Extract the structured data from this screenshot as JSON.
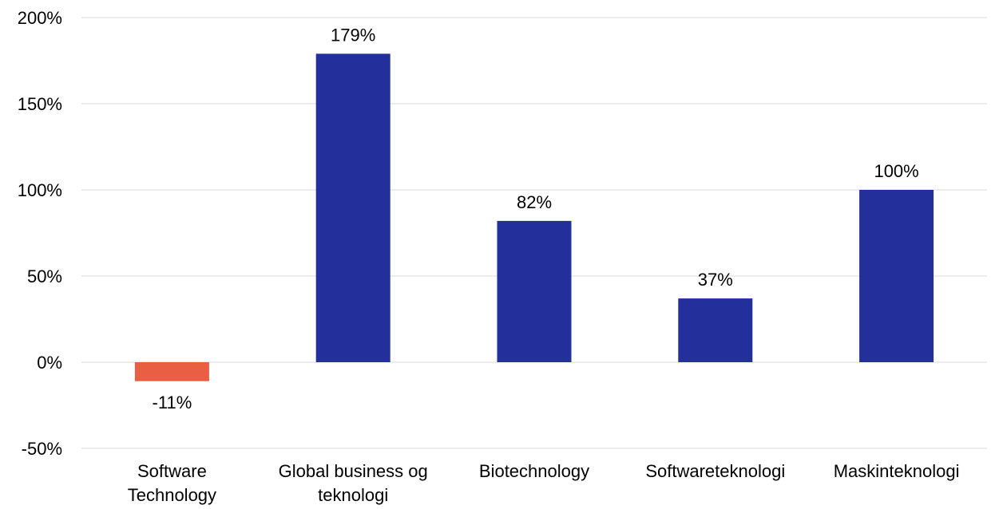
{
  "chart_data": {
    "type": "bar",
    "categories": [
      [
        "Software",
        "Technology"
      ],
      [
        "Global business og",
        "teknologi"
      ],
      [
        "Biotechnology"
      ],
      [
        "Softwareteknologi"
      ],
      [
        "Maskinteknologi"
      ]
    ],
    "values": [
      -11,
      179,
      82,
      37,
      100
    ],
    "data_labels": [
      "-11%",
      "179%",
      "82%",
      "37%",
      "100%"
    ],
    "y_ticks": [
      {
        "value": 200,
        "label": "200%"
      },
      {
        "value": 150,
        "label": "150%"
      },
      {
        "value": 100,
        "label": "100%"
      },
      {
        "value": 50,
        "label": "50%"
      },
      {
        "value": 0,
        "label": "0%"
      },
      {
        "value": -50,
        "label": "-50%"
      }
    ],
    "ylim": [
      -50,
      200
    ],
    "grid": true,
    "title": "",
    "xlabel": "",
    "ylabel": "",
    "colors": {
      "positive": "#232f9b",
      "negative": "#e85f43",
      "grid": "#d9d9d9"
    }
  }
}
